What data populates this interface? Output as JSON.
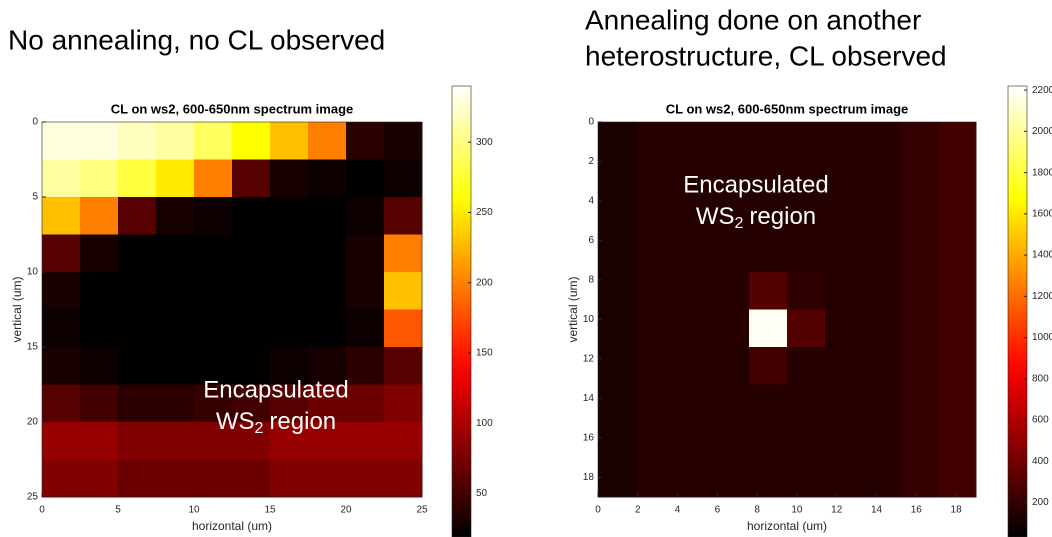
{
  "chart_data": [
    {
      "type": "heatmap",
      "heading": [
        "No annealing, no CL observed"
      ],
      "title": "CL on ws2, 600-650nm spectrum image",
      "x_label": "horizontal (um)",
      "y_label": "vertical (um)",
      "xlim": [
        0,
        25
      ],
      "ylim": [
        0,
        25
      ],
      "xticks": [
        0,
        5,
        10,
        15,
        20,
        25
      ],
      "yticks": [
        0,
        5,
        10,
        15,
        20,
        25
      ],
      "colormap": "hot",
      "clim": [
        19,
        340
      ],
      "cticks": [
        50,
        100,
        150,
        200,
        250,
        300
      ],
      "annotation": [
        "Encapsulated",
        "WS",
        "2",
        "region"
      ],
      "z": [
        [
          330,
          330,
          320,
          310,
          290,
          260,
          230,
          200,
          40,
          30
        ],
        [
          310,
          300,
          280,
          250,
          200,
          60,
          30,
          25,
          20,
          25
        ],
        [
          230,
          200,
          60,
          30,
          25,
          20,
          20,
          20,
          25,
          60
        ],
        [
          60,
          30,
          20,
          20,
          20,
          20,
          20,
          20,
          30,
          200
        ],
        [
          30,
          20,
          20,
          20,
          20,
          20,
          20,
          20,
          30,
          230
        ],
        [
          25,
          20,
          20,
          20,
          20,
          20,
          20,
          20,
          25,
          180
        ],
        [
          30,
          25,
          20,
          20,
          20,
          20,
          25,
          30,
          40,
          60
        ],
        [
          60,
          50,
          40,
          40,
          45,
          50,
          60,
          70,
          70,
          80
        ],
        [
          90,
          90,
          80,
          80,
          80,
          80,
          90,
          90,
          90,
          90
        ],
        [
          80,
          80,
          70,
          70,
          70,
          70,
          80,
          80,
          80,
          80
        ]
      ]
    },
    {
      "type": "heatmap",
      "heading": [
        "Annealing done on another",
        "heterostructure, CL observed"
      ],
      "title": "CL on ws2, 600-650nm spectrum image",
      "x_label": "horizontal (um)",
      "y_label": "vertical (um)",
      "xlim": [
        0,
        19
      ],
      "ylim": [
        0,
        19
      ],
      "xticks": [
        0,
        2,
        4,
        6,
        8,
        10,
        12,
        14,
        16,
        18
      ],
      "yticks": [
        0,
        2,
        4,
        6,
        8,
        10,
        12,
        14,
        16,
        18
      ],
      "colormap": "hot",
      "clim": [
        33,
        2220
      ],
      "cticks": [
        200,
        400,
        600,
        800,
        1000,
        1200,
        1400,
        1600,
        1800,
        2000,
        2200
      ],
      "annotation": [
        "Encapsulated",
        "WS",
        "2",
        "region"
      ],
      "z": [
        [
          120,
          150,
          150,
          150,
          150,
          150,
          150,
          150,
          200,
          250
        ],
        [
          120,
          150,
          150,
          150,
          150,
          150,
          150,
          150,
          200,
          250
        ],
        [
          120,
          150,
          150,
          150,
          150,
          150,
          150,
          150,
          200,
          250
        ],
        [
          120,
          150,
          150,
          150,
          160,
          160,
          150,
          150,
          200,
          250
        ],
        [
          120,
          150,
          150,
          160,
          300,
          180,
          150,
          150,
          200,
          250
        ],
        [
          120,
          150,
          150,
          160,
          2200,
          300,
          150,
          150,
          200,
          250
        ],
        [
          120,
          150,
          150,
          150,
          250,
          160,
          150,
          150,
          200,
          250
        ],
        [
          120,
          150,
          150,
          150,
          150,
          150,
          150,
          150,
          200,
          250
        ],
        [
          120,
          150,
          150,
          150,
          150,
          150,
          150,
          150,
          200,
          250
        ],
        [
          120,
          150,
          150,
          150,
          150,
          150,
          150,
          150,
          200,
          250
        ]
      ]
    }
  ]
}
